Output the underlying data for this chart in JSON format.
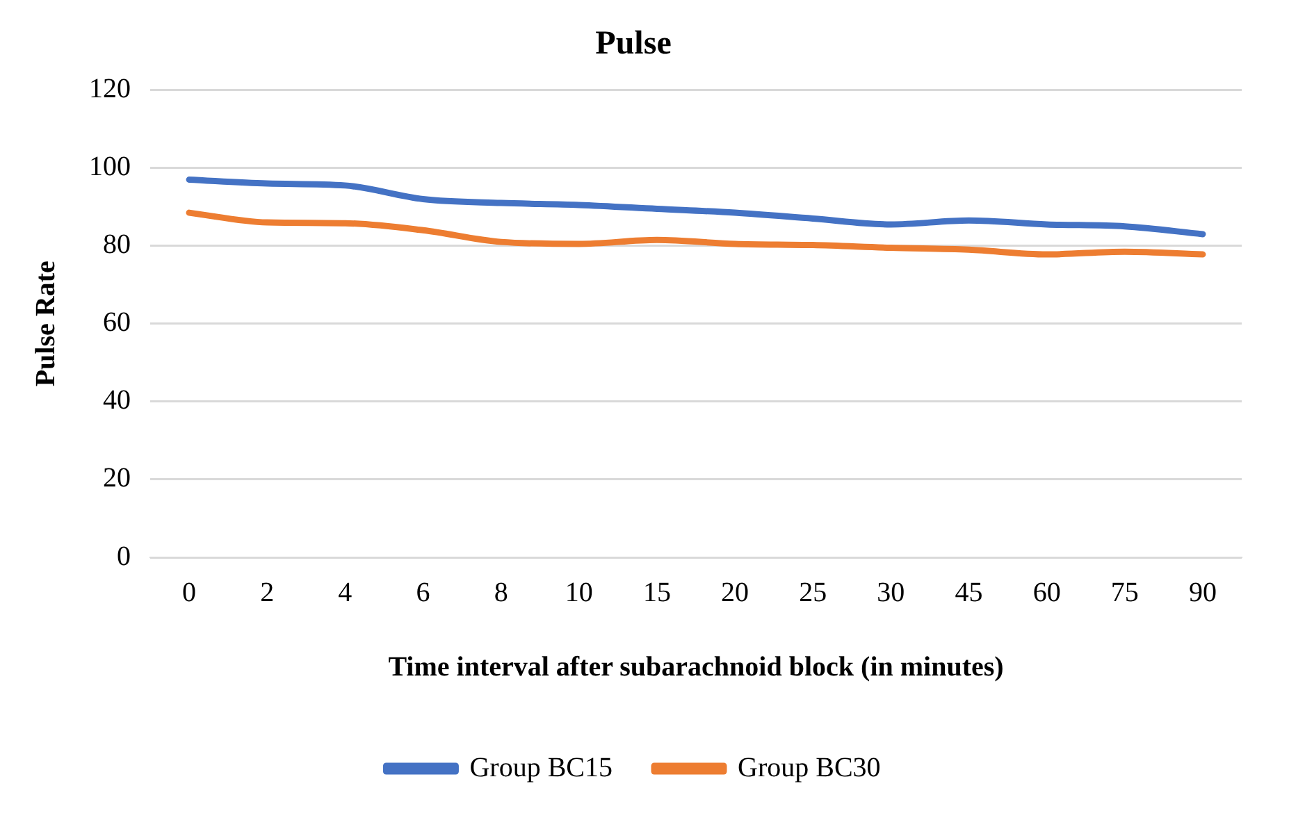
{
  "chart_data": {
    "type": "line",
    "title": "Pulse",
    "xlabel": "Time interval after subarachnoid block (in minutes)",
    "ylabel": "Pulse Rate",
    "categories": [
      "0",
      "2",
      "4",
      "6",
      "8",
      "10",
      "15",
      "20",
      "25",
      "30",
      "45",
      "60",
      "75",
      "90"
    ],
    "series": [
      {
        "name": "Group BC15",
        "color": "#4472c4",
        "values": [
          97,
          96,
          95.5,
          92,
          91,
          90.5,
          89.5,
          88.5,
          87,
          85.5,
          86.5,
          85.5,
          85,
          83
        ]
      },
      {
        "name": "Group BC30",
        "color": "#ed7d31",
        "values": [
          88.5,
          86,
          85.8,
          84,
          81,
          80.5,
          81.5,
          80.5,
          80.2,
          79.5,
          79,
          77.8,
          78.5,
          77.8
        ]
      }
    ],
    "ylim": [
      0,
      120
    ],
    "yticks": [
      0,
      20,
      40,
      60,
      80,
      100,
      120
    ],
    "grid": "y",
    "legend": "bottom",
    "marker": "none",
    "line_style": "solid"
  }
}
